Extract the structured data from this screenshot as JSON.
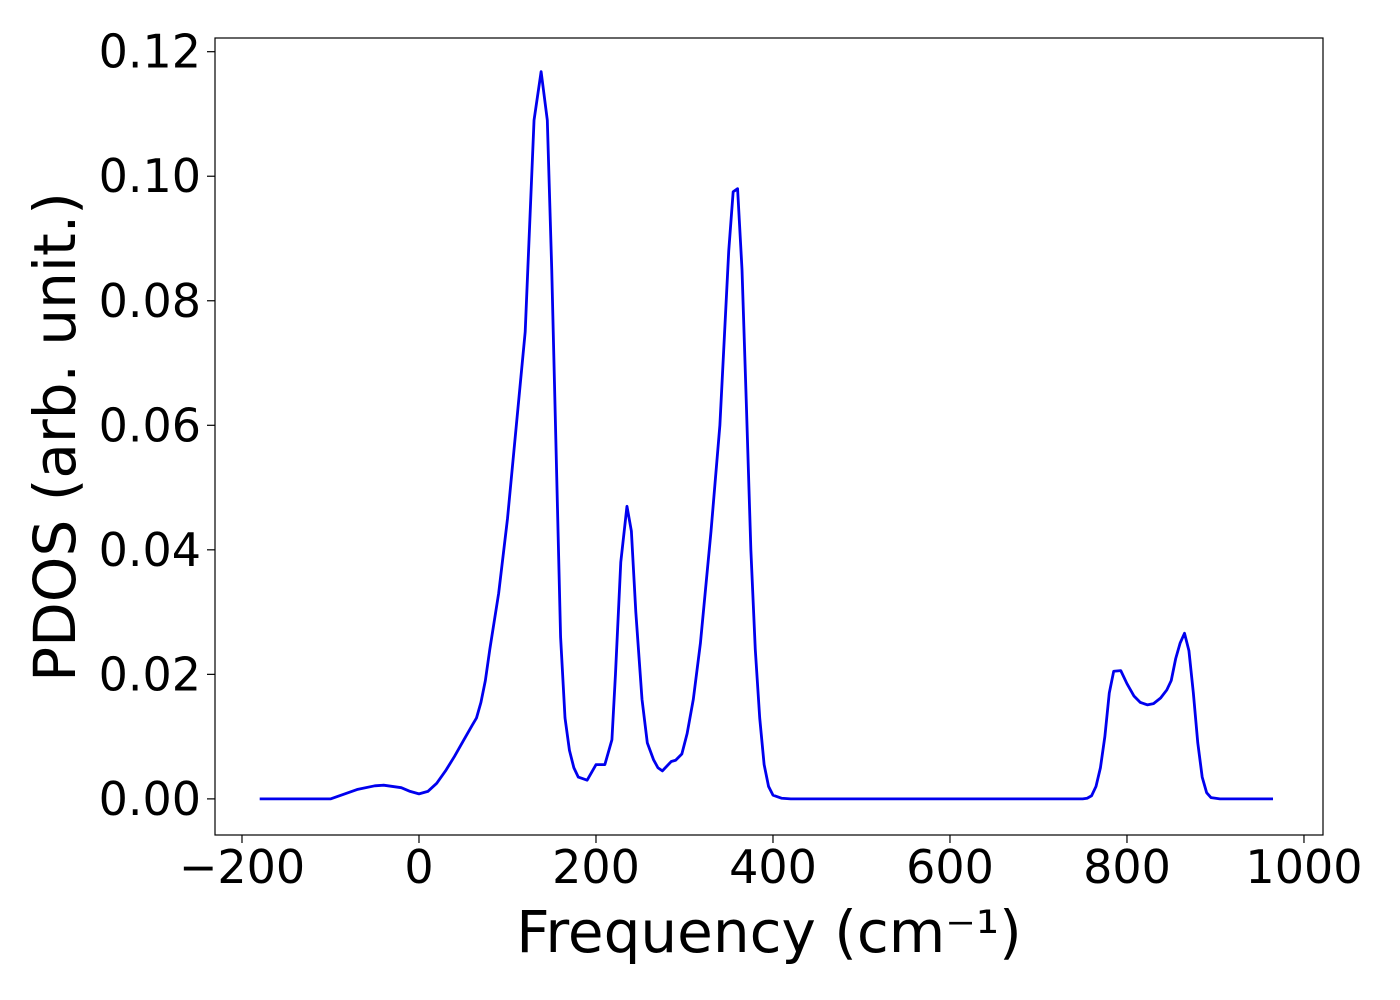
{
  "chart_data": {
    "type": "line",
    "xlabel": "Frequency (cm⁻¹)",
    "ylabel": "PDOS (arb. unit.)",
    "x": [
      -180,
      -100,
      -90,
      -70,
      -50,
      -40,
      -20,
      -10,
      0,
      10,
      20,
      30,
      40,
      50,
      60,
      65,
      70,
      75,
      80,
      90,
      100,
      110,
      120,
      130,
      138,
      145,
      150,
      160,
      165,
      170,
      175,
      180,
      190,
      200,
      210,
      218,
      222,
      228,
      235,
      240,
      245,
      252,
      258,
      265,
      270,
      275,
      285,
      290,
      297,
      303,
      310,
      318,
      330,
      340,
      350,
      355,
      360,
      365,
      370,
      375,
      380,
      385,
      390,
      395,
      400,
      410,
      420,
      750,
      755,
      760,
      765,
      770,
      775,
      780,
      785,
      793,
      800,
      808,
      815,
      823,
      830,
      838,
      845,
      850,
      855,
      860,
      865,
      870,
      875,
      880,
      885,
      890,
      895,
      905,
      965
    ],
    "series": [
      {
        "color": "#0000ee",
        "values": [
          0,
          0,
          0.0005,
          0.0015,
          0.0021,
          0.0022,
          0.0018,
          0.0012,
          0.0008,
          0.0012,
          0.0025,
          0.0045,
          0.0068,
          0.0093,
          0.0118,
          0.013,
          0.0155,
          0.019,
          0.024,
          0.033,
          0.045,
          0.06,
          0.075,
          0.109,
          0.1168,
          0.109,
          0.085,
          0.026,
          0.013,
          0.0078,
          0.005,
          0.0035,
          0.003,
          0.0055,
          0.0055,
          0.0095,
          0.02,
          0.038,
          0.047,
          0.043,
          0.03,
          0.016,
          0.009,
          0.0063,
          0.005,
          0.0045,
          0.006,
          0.0062,
          0.0072,
          0.0105,
          0.016,
          0.025,
          0.043,
          0.06,
          0.088,
          0.0975,
          0.098,
          0.085,
          0.063,
          0.04,
          0.024,
          0.013,
          0.0055,
          0.002,
          0.0006,
          0.0001,
          0,
          0,
          0.0001,
          0.0005,
          0.002,
          0.005,
          0.01,
          0.017,
          0.0205,
          0.0206,
          0.0185,
          0.0165,
          0.0155,
          0.0151,
          0.0153,
          0.0162,
          0.0175,
          0.019,
          0.0225,
          0.025,
          0.0266,
          0.0238,
          0.017,
          0.009,
          0.0035,
          0.001,
          0.0002,
          0,
          0
        ]
      }
    ],
    "xlim": [
      -230.5,
      1021.5
    ],
    "ylim": [
      -0.0058,
      0.1222
    ],
    "xticks": [
      {
        "value": -200,
        "label": "−200"
      },
      0,
      200,
      400,
      600,
      800,
      1000
    ],
    "yticks": [
      {
        "value": 0,
        "label": "0.00"
      },
      {
        "value": 0.02,
        "label": "0.02"
      },
      {
        "value": 0.04,
        "label": "0.04"
      },
      {
        "value": 0.06,
        "label": "0.06"
      },
      {
        "value": 0.08,
        "label": "0.08"
      },
      {
        "value": 0.1,
        "label": "0.10"
      },
      {
        "value": 0.12,
        "label": "0.12"
      }
    ],
    "grid": false
  }
}
